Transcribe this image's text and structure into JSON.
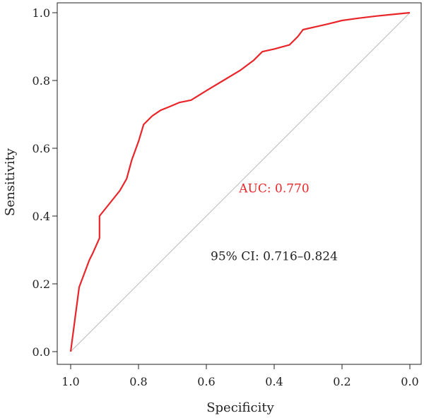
{
  "chart_data": {
    "type": "line",
    "title": "",
    "xlabel": "Specificity",
    "ylabel": "Sensitivity",
    "x_reversed": true,
    "xlim": [
      1.0,
      0.0
    ],
    "ylim": [
      0.0,
      1.0
    ],
    "x_ticks": [
      1.0,
      0.8,
      0.6,
      0.4,
      0.2,
      0.0
    ],
    "x_tick_labels": [
      "1.0",
      "0.8",
      "0.6",
      "0.4",
      "0.2",
      "0.0"
    ],
    "y_ticks": [
      0.0,
      0.2,
      0.4,
      0.6,
      0.8,
      1.0
    ],
    "y_tick_labels": [
      "0.0",
      "0.2",
      "0.4",
      "0.6",
      "0.8",
      "1.0"
    ],
    "grid": false,
    "legend": "none",
    "series": [
      {
        "color": "#e8262a",
        "x": [
          1.0,
          0.975,
          0.96,
          0.945,
          0.935,
          0.915,
          0.915,
          0.895,
          0.875,
          0.855,
          0.835,
          0.82,
          0.8,
          0.785,
          0.76,
          0.735,
          0.71,
          0.68,
          0.645,
          0.6,
          0.55,
          0.5,
          0.48,
          0.46,
          0.435,
          0.4,
          0.355,
          0.33,
          0.315,
          0.28,
          0.24,
          0.2,
          0.15,
          0.1,
          0.05,
          0.0
        ],
        "y": [
          0.0,
          0.19,
          0.23,
          0.27,
          0.29,
          0.335,
          0.4,
          0.425,
          0.45,
          0.475,
          0.51,
          0.565,
          0.62,
          0.67,
          0.695,
          0.712,
          0.722,
          0.735,
          0.742,
          0.77,
          0.8,
          0.83,
          0.845,
          0.86,
          0.885,
          0.893,
          0.905,
          0.93,
          0.95,
          0.958,
          0.967,
          0.977,
          0.984,
          0.99,
          0.995,
          1.0
        ]
      },
      {
        "color": "#bbbbbb",
        "x": [
          1.0,
          0.0
        ],
        "y": [
          0.0,
          1.0
        ]
      }
    ],
    "annotations": [
      {
        "text": "AUC: 0.770",
        "x": 0.4,
        "y": 0.47,
        "color": "#e8262a"
      },
      {
        "text": "95% CI: 0.716–0.824",
        "x": 0.4,
        "y": 0.27,
        "color": "#222222"
      }
    ]
  }
}
